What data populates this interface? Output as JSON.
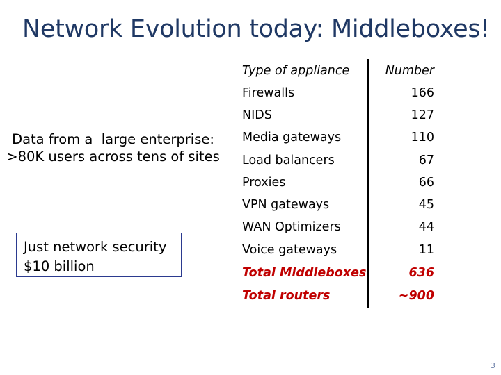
{
  "title": "Network Evolution today: Middleboxes!",
  "source_note": {
    "line1": "Data from a  large enterprise:",
    "line2": ">80K users across tens of sites"
  },
  "callout": {
    "line1": "Just network security",
    "line2": "$10 billion"
  },
  "table": {
    "header": {
      "name": "Type of appliance",
      "number": "Number"
    },
    "rows": [
      {
        "name": "Firewalls",
        "number": "166"
      },
      {
        "name": "NIDS",
        "number": "127"
      },
      {
        "name": "Media gateways",
        "number": "110"
      },
      {
        "name": "Load balancers",
        "number": "67"
      },
      {
        "name": "Proxies",
        "number": "66"
      },
      {
        "name": "VPN gateways",
        "number": "45"
      },
      {
        "name": "WAN Optimizers",
        "number": "44"
      },
      {
        "name": "Voice gateways",
        "number": "11"
      }
    ],
    "totals": [
      {
        "name": "Total Middleboxes",
        "number": "636"
      },
      {
        "name": "Total routers",
        "number": "~900"
      }
    ]
  },
  "page_number": "3",
  "colors": {
    "title": "#1f3864",
    "total_text": "#c00000",
    "callout_border": "#2b3a8f"
  }
}
